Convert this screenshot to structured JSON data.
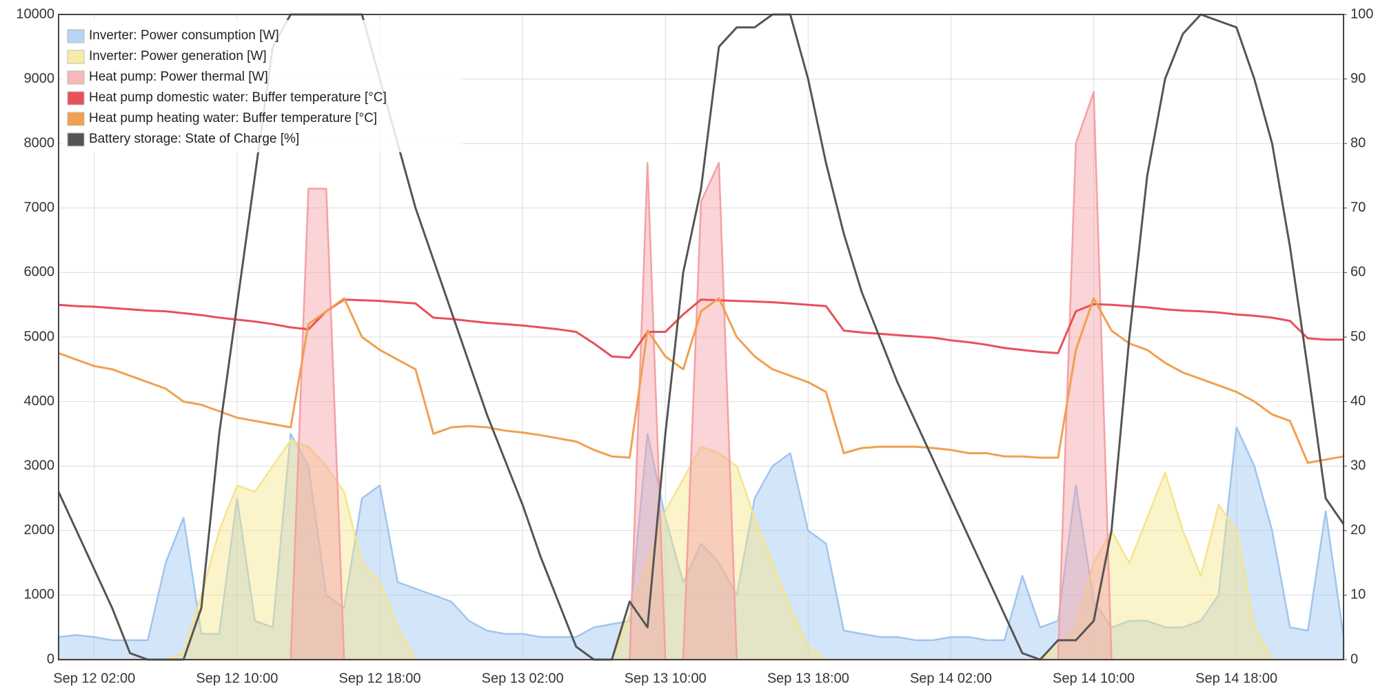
{
  "chart_data": {
    "type": "line",
    "x": [
      "Sep 12 00:00",
      "Sep 12 01:00",
      "Sep 12 02:00",
      "Sep 12 03:00",
      "Sep 12 04:00",
      "Sep 12 05:00",
      "Sep 12 06:00",
      "Sep 12 07:00",
      "Sep 12 08:00",
      "Sep 12 09:00",
      "Sep 12 10:00",
      "Sep 12 11:00",
      "Sep 12 12:00",
      "Sep 12 13:00",
      "Sep 12 14:00",
      "Sep 12 15:00",
      "Sep 12 16:00",
      "Sep 12 17:00",
      "Sep 12 18:00",
      "Sep 12 19:00",
      "Sep 12 20:00",
      "Sep 12 21:00",
      "Sep 12 22:00",
      "Sep 12 23:00",
      "Sep 13 00:00",
      "Sep 13 01:00",
      "Sep 13 02:00",
      "Sep 13 03:00",
      "Sep 13 04:00",
      "Sep 13 05:00",
      "Sep 13 06:00",
      "Sep 13 07:00",
      "Sep 13 08:00",
      "Sep 13 09:00",
      "Sep 13 10:00",
      "Sep 13 11:00",
      "Sep 13 12:00",
      "Sep 13 13:00",
      "Sep 13 14:00",
      "Sep 13 15:00",
      "Sep 13 16:00",
      "Sep 13 17:00",
      "Sep 13 18:00",
      "Sep 13 19:00",
      "Sep 13 20:00",
      "Sep 13 21:00",
      "Sep 13 22:00",
      "Sep 13 23:00",
      "Sep 14 00:00",
      "Sep 14 01:00",
      "Sep 14 02:00",
      "Sep 14 03:00",
      "Sep 14 04:00",
      "Sep 14 05:00",
      "Sep 14 06:00",
      "Sep 14 07:00",
      "Sep 14 08:00",
      "Sep 14 09:00",
      "Sep 14 10:00",
      "Sep 14 11:00",
      "Sep 14 12:00",
      "Sep 14 13:00",
      "Sep 14 14:00",
      "Sep 14 15:00",
      "Sep 14 16:00",
      "Sep 14 17:00",
      "Sep 14 18:00",
      "Sep 14 19:00",
      "Sep 14 20:00",
      "Sep 14 21:00",
      "Sep 14 22:00",
      "Sep 14 23:00",
      "Sep 15 00:00"
    ],
    "xlim": [
      "Sep 12 00:00",
      "Sep 15 00:00"
    ],
    "xticks": [
      "Sep 12 02:00",
      "Sep 12 10:00",
      "Sep 12 18:00",
      "Sep 13 02:00",
      "Sep 13 10:00",
      "Sep 13 18:00",
      "Sep 14 02:00",
      "Sep 14 10:00",
      "Sep 14 18:00"
    ],
    "ylim": [
      0,
      10000
    ],
    "yticks": [
      0,
      1000,
      2000,
      3000,
      4000,
      5000,
      6000,
      7000,
      8000,
      9000,
      10000
    ],
    "y2lim": [
      0,
      100
    ],
    "y2ticks": [
      0,
      10,
      20,
      30,
      40,
      50,
      60,
      70,
      80,
      90,
      100
    ],
    "grid": true,
    "legend": "top-left",
    "series": [
      {
        "name": "Inverter: Power consumption [W]",
        "color": "#9ec5f0",
        "style": "area",
        "values": [
          350,
          380,
          350,
          300,
          300,
          300,
          1500,
          2200,
          400,
          400,
          2500,
          600,
          500,
          3500,
          3000,
          1000,
          800,
          2500,
          2700,
          1200,
          1100,
          1000,
          900,
          600,
          450,
          400,
          400,
          350,
          350,
          350,
          500,
          550,
          600,
          3500,
          2200,
          1200,
          1800,
          1500,
          1000,
          2500,
          3000,
          3200,
          2000,
          1800,
          450,
          400,
          350,
          350,
          300,
          300,
          350,
          350,
          300,
          300,
          1300,
          500,
          600,
          2700,
          900,
          500,
          600,
          600,
          500,
          500,
          600,
          1000,
          3600,
          3000,
          2000,
          500,
          450,
          2300,
          350
        ]
      },
      {
        "name": "Inverter: Power generation [W]",
        "color": "#f6e48a",
        "style": "area",
        "values": [
          0,
          0,
          0,
          0,
          0,
          0,
          0,
          100,
          1000,
          2000,
          2700,
          2600,
          3000,
          3400,
          3300,
          3000,
          2600,
          1500,
          1200,
          500,
          0,
          0,
          0,
          0,
          0,
          0,
          0,
          0,
          0,
          0,
          0,
          0,
          700,
          1500,
          2300,
          2800,
          3300,
          3200,
          3000,
          2200,
          1500,
          800,
          200,
          0,
          0,
          0,
          0,
          0,
          0,
          0,
          0,
          0,
          0,
          0,
          0,
          0,
          200,
          500,
          1500,
          2000,
          1500,
          2200,
          2900,
          2000,
          1300,
          2400,
          2000,
          500,
          0,
          0,
          0,
          0,
          0
        ]
      },
      {
        "name": "Heat pump: Power thermal [W]",
        "color": "#f4a0a4",
        "style": "area",
        "values": [
          0,
          0,
          0,
          0,
          0,
          0,
          0,
          0,
          0,
          0,
          0,
          0,
          0,
          0,
          7300,
          7300,
          0,
          0,
          0,
          0,
          0,
          0,
          0,
          0,
          0,
          0,
          0,
          0,
          0,
          0,
          0,
          0,
          0,
          7700,
          0,
          0,
          7100,
          7700,
          0,
          0,
          0,
          0,
          0,
          0,
          0,
          0,
          0,
          0,
          0,
          0,
          0,
          0,
          0,
          0,
          0,
          0,
          0,
          8000,
          8800,
          0,
          0,
          0,
          0,
          0,
          0,
          0,
          0,
          0,
          0,
          0,
          0,
          0,
          0
        ]
      },
      {
        "name": "Heat pump domestic water: Buffer temperature [°C]",
        "color": "#e8505a",
        "style": "line",
        "axis": "y2",
        "values": [
          55,
          54.8,
          54.7,
          54.5,
          54.3,
          54.1,
          54,
          53.7,
          53.4,
          53,
          52.7,
          52.4,
          52,
          51.5,
          51.2,
          54,
          55.8,
          55.7,
          55.6,
          55.4,
          55.2,
          53,
          52.8,
          52.5,
          52.2,
          52,
          51.8,
          51.5,
          51.2,
          50.8,
          49,
          47,
          46.8,
          50.8,
          50.8,
          53.5,
          55.8,
          55.7,
          55.6,
          55.5,
          55.4,
          55.2,
          55,
          54.8,
          51,
          50.7,
          50.5,
          50.3,
          50.1,
          49.9,
          49.5,
          49.2,
          48.8,
          48.3,
          48,
          47.7,
          47.5,
          54,
          55.1,
          55,
          54.8,
          54.6,
          54.3,
          54.1,
          54,
          53.8,
          53.5,
          53.3,
          53,
          52.5,
          49.8,
          49.6,
          49.6
        ]
      },
      {
        "name": "Heat pump heating water: Buffer temperature [°C]",
        "color": "#f0a050",
        "style": "line",
        "axis": "y2",
        "values": [
          47.5,
          46.5,
          45.5,
          45,
          44,
          43,
          42,
          40,
          39.5,
          38.5,
          37.5,
          37,
          36.5,
          36,
          52,
          54,
          56,
          50,
          48,
          46.5,
          45,
          35,
          36,
          36.2,
          36,
          35.5,
          35.2,
          34.8,
          34.3,
          33.8,
          32.5,
          31.5,
          31.3,
          51,
          47,
          45,
          54,
          56,
          50,
          47,
          45,
          44,
          43,
          41.5,
          32,
          32.8,
          33,
          33,
          33,
          32.8,
          32.5,
          32,
          32,
          31.5,
          31.5,
          31.3,
          31.3,
          48,
          56,
          51,
          49,
          48,
          46,
          44.5,
          43.5,
          42.5,
          41.5,
          40,
          38,
          37,
          30.5,
          31,
          31.5
        ]
      },
      {
        "name": "Battery storage: State of Charge [%]",
        "color": "#555555",
        "style": "line",
        "axis": "y2",
        "values": [
          26,
          20,
          14,
          8,
          1,
          0,
          0,
          0,
          8,
          35,
          55,
          75,
          95,
          100,
          100,
          100,
          100,
          100,
          90,
          80,
          70,
          62,
          54,
          46,
          38,
          31,
          24,
          16,
          9,
          2,
          0,
          0,
          9,
          5,
          35,
          60,
          73,
          95,
          98,
          98,
          100,
          100,
          90,
          77,
          66,
          57,
          50,
          43,
          37,
          31,
          25,
          19,
          13,
          7,
          1,
          0,
          3,
          3,
          6,
          20,
          50,
          75,
          90,
          97,
          100,
          99,
          98,
          90,
          80,
          64,
          45,
          25,
          21
        ]
      }
    ]
  }
}
